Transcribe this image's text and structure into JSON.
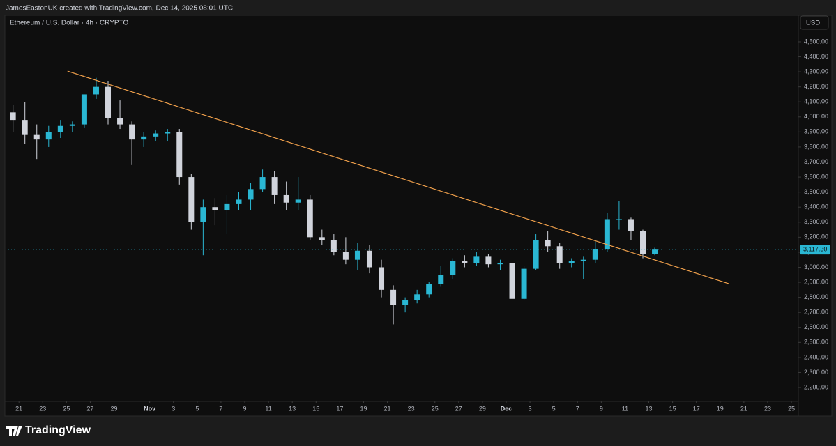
{
  "header": "JamesEastonUK created with TradingView.com, Dec 14, 2025 08:01 UTC",
  "footer": {
    "brand": "TradingView"
  },
  "chart_data": {
    "type": "candlestick",
    "title": "Ethereum / U.S. Dollar · 4h · CRYPTO",
    "currency": "USD",
    "up_color": "#2ab7d3",
    "down_color": "#d1d4dc",
    "grid": false,
    "x": [
      "2025-10-20",
      "2025-10-21",
      "2025-10-22",
      "2025-10-23",
      "2025-10-24",
      "2025-10-25",
      "2025-10-26",
      "2025-10-27",
      "2025-10-28",
      "2025-10-29",
      "2025-10-30",
      "2025-10-31",
      "2025-11-01",
      "2025-11-02",
      "2025-11-03",
      "2025-11-04",
      "2025-11-05",
      "2025-11-06",
      "2025-11-07",
      "2025-11-08",
      "2025-11-09",
      "2025-11-10",
      "2025-11-11",
      "2025-11-12",
      "2025-11-13",
      "2025-11-14",
      "2025-11-15",
      "2025-11-16",
      "2025-11-17",
      "2025-11-18",
      "2025-11-19",
      "2025-11-20",
      "2025-11-21",
      "2025-11-22",
      "2025-11-23",
      "2025-11-24",
      "2025-11-25",
      "2025-11-26",
      "2025-11-27",
      "2025-11-28",
      "2025-11-29",
      "2025-11-30",
      "2025-12-01",
      "2025-12-02",
      "2025-12-03",
      "2025-12-04",
      "2025-12-05",
      "2025-12-06",
      "2025-12-07",
      "2025-12-08",
      "2025-12-09",
      "2025-12-10",
      "2025-12-11",
      "2025-12-12",
      "2025-12-13"
    ],
    "open": [
      4030,
      3980,
      3880,
      3850,
      3900,
      3940,
      3950,
      4150,
      4200,
      3990,
      3950,
      3850,
      3870,
      3890,
      3900,
      3600,
      3300,
      3400,
      3380,
      3420,
      3450,
      3520,
      3600,
      3480,
      3430,
      3450,
      3200,
      3180,
      3100,
      3050,
      3110,
      3000,
      2850,
      2750,
      2780,
      2820,
      2890,
      2950,
      3040,
      3030,
      3070,
      3020,
      3030,
      2790,
      2990,
      3180,
      3140,
      3030,
      3040,
      3050,
      3120,
      3320,
      3320,
      3240,
      3090
    ],
    "high": [
      4080,
      4100,
      3950,
      3940,
      3980,
      3970,
      4150,
      4260,
      4240,
      4110,
      3970,
      3900,
      3910,
      3920,
      3920,
      3620,
      3450,
      3460,
      3480,
      3500,
      3560,
      3650,
      3640,
      3570,
      3600,
      3480,
      3250,
      3220,
      3200,
      3160,
      3150,
      3050,
      2880,
      2800,
      2850,
      2900,
      3010,
      3060,
      3080,
      3100,
      3090,
      3050,
      3050,
      3010,
      3220,
      3240,
      3160,
      3060,
      3070,
      3170,
      3360,
      3440,
      3330,
      3250,
      3130
    ],
    "low": [
      3900,
      3820,
      3720,
      3800,
      3860,
      3900,
      3930,
      4120,
      3950,
      3920,
      3680,
      3800,
      3840,
      3840,
      3550,
      3250,
      3080,
      3280,
      3220,
      3380,
      3380,
      3500,
      3420,
      3380,
      3380,
      3180,
      3150,
      3080,
      3020,
      2980,
      2960,
      2800,
      2620,
      2700,
      2760,
      2800,
      2870,
      2920,
      3000,
      3010,
      3000,
      2980,
      2720,
      2780,
      2980,
      3100,
      2990,
      3000,
      2920,
      3030,
      3100,
      3250,
      3180,
      3060,
      3080
    ],
    "close": [
      3980,
      3880,
      3850,
      3900,
      3940,
      3950,
      4150,
      4200,
      3990,
      3950,
      3850,
      3870,
      3890,
      3900,
      3600,
      3300,
      3400,
      3380,
      3420,
      3450,
      3520,
      3600,
      3480,
      3430,
      3450,
      3200,
      3180,
      3100,
      3050,
      3110,
      3000,
      2850,
      2750,
      2780,
      2820,
      2890,
      2950,
      3040,
      3030,
      3070,
      3020,
      3030,
      2790,
      2990,
      3180,
      3140,
      3030,
      3040,
      3050,
      3120,
      3320,
      3320,
      3240,
      3090,
      3117.3
    ],
    "last_price": {
      "value": 3117.3,
      "label": "3,117.30"
    },
    "trendline": {
      "color": "#f0a04b",
      "x": [
        "2025-10-25T02:00",
        "2025-12-19T17:00"
      ],
      "y": [
        4305,
        2891
      ]
    },
    "xlim": [
      "2025-10-19T21:00",
      "2025-12-25T14:00"
    ],
    "ylim": [
      2112,
      4676
    ],
    "xticks": [
      {
        "value": "2025-10-21",
        "label": "21"
      },
      {
        "value": "2025-10-23",
        "label": "23"
      },
      {
        "value": "2025-10-25",
        "label": "25"
      },
      {
        "value": "2025-10-27",
        "label": "27"
      },
      {
        "value": "2025-10-29",
        "label": "29"
      },
      {
        "value": "2025-11-01",
        "label": "Nov"
      },
      {
        "value": "2025-11-03",
        "label": "3"
      },
      {
        "value": "2025-11-05",
        "label": "5"
      },
      {
        "value": "2025-11-07",
        "label": "7"
      },
      {
        "value": "2025-11-09",
        "label": "9"
      },
      {
        "value": "2025-11-11",
        "label": "11"
      },
      {
        "value": "2025-11-13",
        "label": "13"
      },
      {
        "value": "2025-11-15",
        "label": "15"
      },
      {
        "value": "2025-11-17",
        "label": "17"
      },
      {
        "value": "2025-11-19",
        "label": "19"
      },
      {
        "value": "2025-11-21",
        "label": "21"
      },
      {
        "value": "2025-11-23",
        "label": "23"
      },
      {
        "value": "2025-11-25",
        "label": "25"
      },
      {
        "value": "2025-11-27",
        "label": "27"
      },
      {
        "value": "2025-11-29",
        "label": "29"
      },
      {
        "value": "2025-12-01",
        "label": "Dec"
      },
      {
        "value": "2025-12-03",
        "label": "3"
      },
      {
        "value": "2025-12-05",
        "label": "5"
      },
      {
        "value": "2025-12-07",
        "label": "7"
      },
      {
        "value": "2025-12-09",
        "label": "9"
      },
      {
        "value": "2025-12-11",
        "label": "11"
      },
      {
        "value": "2025-12-13",
        "label": "13"
      },
      {
        "value": "2025-12-15",
        "label": "15"
      },
      {
        "value": "2025-12-17",
        "label": "17"
      },
      {
        "value": "2025-12-19",
        "label": "19"
      },
      {
        "value": "2025-12-21",
        "label": "21"
      },
      {
        "value": "2025-12-23",
        "label": "23"
      },
      {
        "value": "2025-12-25",
        "label": "25"
      }
    ],
    "yticks": [
      {
        "value": 2200,
        "label": "2,200.00"
      },
      {
        "value": 2300,
        "label": "2,300.00"
      },
      {
        "value": 2400,
        "label": "2,400.00"
      },
      {
        "value": 2500,
        "label": "2,500.00"
      },
      {
        "value": 2600,
        "label": "2,600.00"
      },
      {
        "value": 2700,
        "label": "2,700.00"
      },
      {
        "value": 2800,
        "label": "2,800.00"
      },
      {
        "value": 2900,
        "label": "2,900.00"
      },
      {
        "value": 3000,
        "label": "3,000.00"
      },
      {
        "value": 3100,
        "label": "3,100.00"
      },
      {
        "value": 3200,
        "label": "3,200.00"
      },
      {
        "value": 3300,
        "label": "3,300.00"
      },
      {
        "value": 3400,
        "label": "3,400.00"
      },
      {
        "value": 3500,
        "label": "3,500.00"
      },
      {
        "value": 3600,
        "label": "3,600.00"
      },
      {
        "value": 3700,
        "label": "3,700.00"
      },
      {
        "value": 3800,
        "label": "3,800.00"
      },
      {
        "value": 3900,
        "label": "3,900.00"
      },
      {
        "value": 4000,
        "label": "4,000.00"
      },
      {
        "value": 4100,
        "label": "4,100.00"
      },
      {
        "value": 4200,
        "label": "4,200.00"
      },
      {
        "value": 4300,
        "label": "4,300.00"
      },
      {
        "value": 4400,
        "label": "4,400.00"
      },
      {
        "value": 4500,
        "label": "4,500.00"
      }
    ]
  }
}
